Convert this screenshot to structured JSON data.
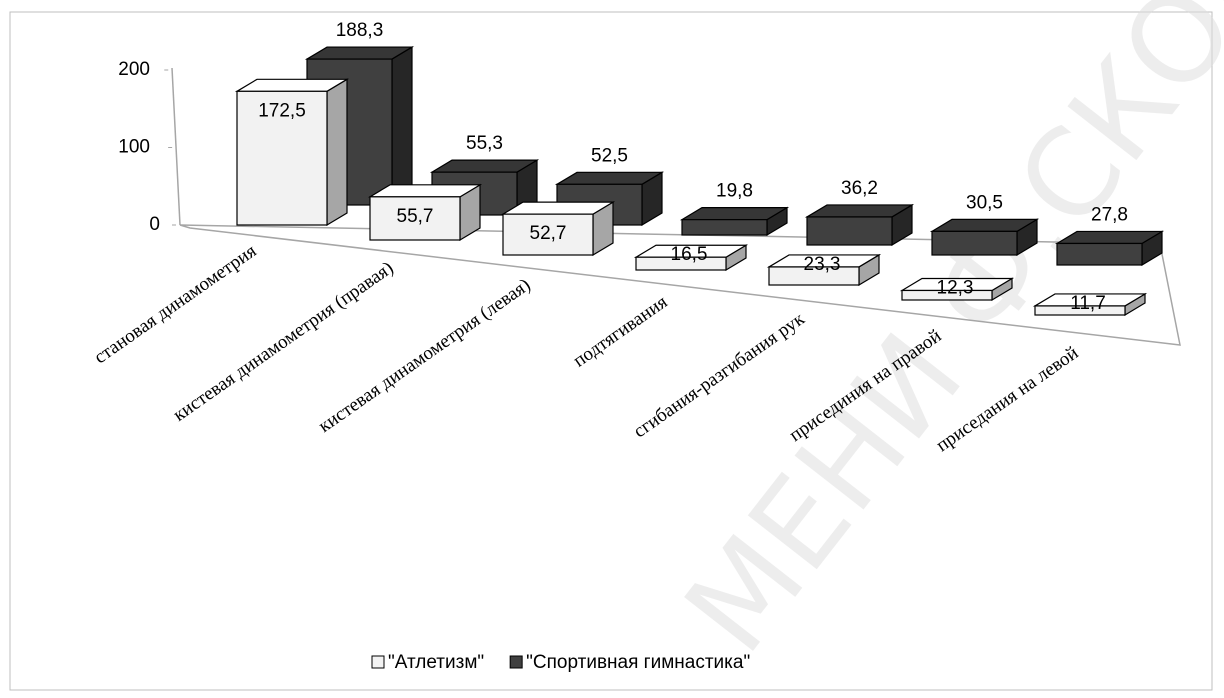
{
  "chart_data": {
    "type": "bar3d",
    "categories": [
      "становая динамометрия",
      "кистевая динамометрия (правая)",
      "кистевая динамометрия (левая)",
      "подтягивания",
      "сгибания-разгибания рук",
      "присединия на правой",
      "приседания на левой"
    ],
    "series": [
      {
        "name": "\"Атлетизм\"",
        "color": "#f2f2f2",
        "values": [
          172.5,
          55.7,
          52.7,
          16.5,
          23.3,
          12.3,
          11.7
        ],
        "value_labels": [
          "172,5",
          "55,7",
          "52,7",
          "16,5",
          "23,3",
          "12,3",
          "11,7"
        ]
      },
      {
        "name": "\"Спортивная гимнастика\"",
        "color": "#404040",
        "values": [
          188.3,
          55.3,
          52.5,
          19.8,
          36.2,
          30.5,
          27.8
        ],
        "value_labels": [
          "188,3",
          "55,3",
          "52,5",
          "19,8",
          "36,2",
          "30,5",
          "27,8"
        ]
      }
    ],
    "ylim": [
      0,
      200
    ],
    "yticks": [
      0,
      100,
      200
    ],
    "legend": "bottom",
    "watermark": "МЕНИ Ф.СКОРИНЫ"
  }
}
